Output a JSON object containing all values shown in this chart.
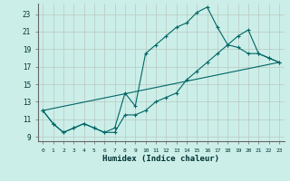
{
  "xlabel": "Humidex (Indice chaleur)",
  "bg_color": "#cceee8",
  "line_color": "#006666",
  "grid_color": "#b8c8c0",
  "xlim": [
    -0.5,
    23.5
  ],
  "ylim": [
    8.5,
    24.2
  ],
  "yticks": [
    9,
    11,
    13,
    15,
    17,
    19,
    21,
    23
  ],
  "xticks": [
    0,
    1,
    2,
    3,
    4,
    5,
    6,
    7,
    8,
    9,
    10,
    11,
    12,
    13,
    14,
    15,
    16,
    17,
    18,
    19,
    20,
    21,
    22,
    23
  ],
  "line1_x": [
    0,
    1,
    2,
    3,
    4,
    5,
    6,
    7,
    8,
    9,
    10,
    11,
    12,
    13,
    14,
    15,
    16,
    17,
    18,
    19,
    20,
    21,
    22,
    23
  ],
  "line1_y": [
    12.0,
    10.5,
    9.5,
    10.0,
    10.5,
    10.0,
    9.5,
    10.0,
    14.0,
    12.5,
    18.5,
    19.5,
    20.5,
    21.5,
    22.0,
    23.2,
    23.8,
    21.5,
    19.5,
    19.2,
    18.5,
    18.5,
    18.0,
    17.5
  ],
  "line2_x": [
    0,
    1,
    2,
    3,
    4,
    5,
    6,
    7,
    8,
    9,
    10,
    11,
    12,
    13,
    14,
    15,
    16,
    17,
    18,
    19,
    20,
    21,
    22,
    23
  ],
  "line2_y": [
    12.0,
    10.5,
    9.5,
    10.0,
    10.5,
    10.0,
    9.5,
    9.5,
    11.5,
    11.5,
    12.0,
    13.0,
    13.5,
    14.0,
    15.5,
    16.5,
    17.5,
    18.5,
    19.5,
    20.5,
    21.2,
    18.5,
    18.0,
    17.5
  ],
  "line3_x": [
    0,
    23
  ],
  "line3_y": [
    12.0,
    17.5
  ]
}
